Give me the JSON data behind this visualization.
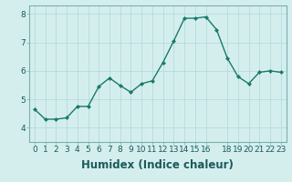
{
  "x": [
    0,
    1,
    2,
    3,
    4,
    5,
    6,
    7,
    8,
    9,
    10,
    11,
    12,
    13,
    14,
    15,
    16,
    17,
    18,
    19,
    20,
    21,
    22,
    23
  ],
  "y": [
    4.65,
    4.3,
    4.3,
    4.35,
    4.75,
    4.75,
    5.45,
    5.75,
    5.48,
    5.25,
    5.55,
    5.65,
    6.3,
    7.05,
    7.85,
    7.85,
    7.9,
    7.45,
    6.45,
    5.8,
    5.55,
    5.95,
    6.0,
    5.95
  ],
  "line_color": "#1a7a6a",
  "marker_color": "#1a7a6a",
  "bg_color": "#d4eeee",
  "grid_color": "#b0d8d8",
  "xlabel": "Humidex (Indice chaleur)",
  "ylim": [
    3.5,
    8.3
  ],
  "xlim": [
    -0.5,
    23.5
  ],
  "yticks": [
    4,
    5,
    6,
    7,
    8
  ],
  "xticks": [
    0,
    1,
    2,
    3,
    4,
    5,
    6,
    7,
    8,
    9,
    10,
    11,
    12,
    13,
    14,
    15,
    16,
    18,
    19,
    20,
    21,
    22,
    23
  ],
  "tick_label_fontsize": 6.5,
  "xlabel_fontsize": 8.5
}
